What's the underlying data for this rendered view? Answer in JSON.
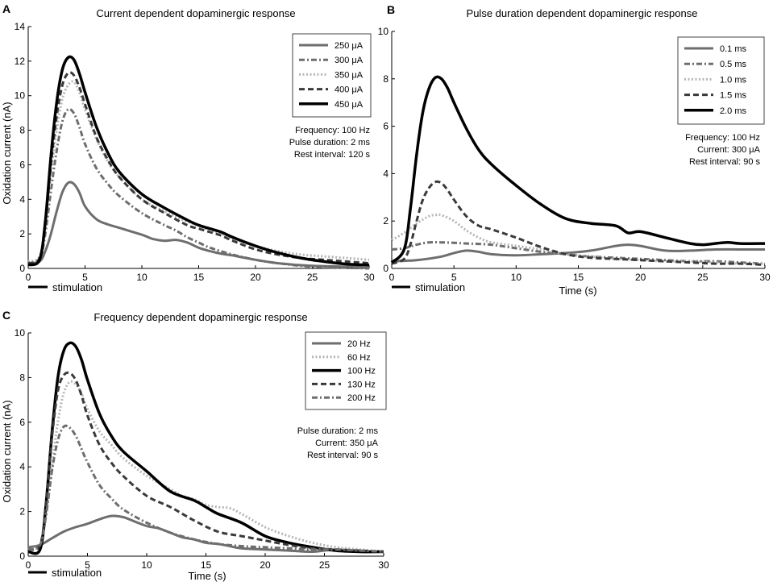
{
  "colors": {
    "dark_gray": "#6e6e6e",
    "mid_gray": "#8a8a8a",
    "light_gray": "#b5b5b5",
    "black": "#000000"
  },
  "chart_data": [
    {
      "panel": "A",
      "type": "line",
      "title": "Current dependent dopaminergic response",
      "xlabel": "",
      "ylabel": "Oxidation current (nA)",
      "xlim": [
        0,
        30
      ],
      "ylim": [
        0,
        14
      ],
      "xticks": [
        0,
        5,
        10,
        15,
        20,
        25,
        30
      ],
      "yticks": [
        0,
        2,
        4,
        6,
        8,
        10,
        12,
        14
      ],
      "stimulation_label": "stimulation",
      "legend_position": "top-right",
      "annotation": [
        "Frequency: 100 Hz",
        "Pulse duration: 2 ms",
        "Rest interval: 120 s"
      ],
      "series": [
        {
          "name": "250 μA",
          "style": "solid",
          "color": "#6e6e6e",
          "width": 3,
          "x": [
            0,
            1,
            1.5,
            2,
            2.5,
            3,
            3.5,
            4,
            4.5,
            5,
            6,
            7,
            8,
            10,
            11,
            12,
            13,
            14,
            15,
            16,
            17,
            18,
            20,
            22,
            25,
            28,
            30
          ],
          "values": [
            0.3,
            0.4,
            1.0,
            2.0,
            3.3,
            4.4,
            4.95,
            4.9,
            4.4,
            3.6,
            2.85,
            2.55,
            2.35,
            1.95,
            1.7,
            1.6,
            1.65,
            1.5,
            1.2,
            1.0,
            0.85,
            0.75,
            0.5,
            0.3,
            0.15,
            0.1,
            0.05
          ]
        },
        {
          "name": "300 μA",
          "style": "dashdot",
          "color": "#6e6e6e",
          "width": 3,
          "x": [
            0,
            1,
            1.5,
            2,
            2.5,
            3,
            3.5,
            4,
            4.5,
            5,
            6,
            7,
            8,
            10,
            12,
            13,
            14,
            15,
            16,
            18,
            20,
            22,
            25,
            30
          ],
          "values": [
            0.2,
            0.5,
            2.0,
            4.5,
            6.8,
            8.5,
            9.2,
            9.0,
            8.2,
            7.2,
            5.8,
            4.9,
            4.2,
            3.2,
            2.5,
            2.2,
            1.8,
            1.5,
            1.2,
            0.8,
            0.5,
            0.3,
            0.1,
            0.0
          ]
        },
        {
          "name": "350 μA",
          "style": "dotted",
          "color": "#b5b5b5",
          "width": 3,
          "x": [
            0,
            1,
            1.5,
            2,
            2.5,
            3,
            3.5,
            4,
            4.5,
            5,
            6,
            7,
            8,
            10,
            12,
            14,
            15,
            16,
            17,
            18,
            20,
            22,
            24,
            26,
            28,
            30
          ],
          "values": [
            0.4,
            0.7,
            2.5,
            5.5,
            8.0,
            9.8,
            10.6,
            10.8,
            10.2,
            9.2,
            7.5,
            6.2,
            5.3,
            4.0,
            3.3,
            2.7,
            2.5,
            2.2,
            2.0,
            1.7,
            1.3,
            1.0,
            0.8,
            0.7,
            0.6,
            0.5
          ]
        },
        {
          "name": "400 μA",
          "style": "dashed",
          "color": "#3a3a3a",
          "width": 3,
          "x": [
            0,
            1,
            1.5,
            2,
            2.5,
            3,
            3.5,
            4,
            4.5,
            5,
            6,
            7,
            8,
            10,
            12,
            14,
            15,
            16,
            17,
            18,
            20,
            22,
            24,
            26,
            28,
            30
          ],
          "values": [
            0.3,
            0.6,
            2.6,
            6.0,
            8.8,
            10.6,
            11.3,
            11.2,
            10.5,
            9.5,
            7.6,
            6.3,
            5.3,
            4.0,
            3.2,
            2.5,
            2.3,
            2.1,
            1.9,
            1.6,
            1.1,
            0.8,
            0.6,
            0.5,
            0.4,
            0.3
          ]
        },
        {
          "name": "450 μA",
          "style": "solid",
          "color": "#000000",
          "width": 3.5,
          "x": [
            0,
            1,
            1.5,
            2,
            2.5,
            3,
            3.5,
            4,
            4.5,
            5,
            6,
            7,
            8,
            10,
            12,
            14,
            15,
            16,
            17,
            18,
            20,
            22,
            24,
            26,
            28,
            30
          ],
          "values": [
            0.2,
            0.5,
            2.7,
            6.5,
            9.6,
            11.5,
            12.2,
            12.1,
            11.3,
            10.2,
            8.2,
            6.7,
            5.6,
            4.3,
            3.5,
            2.8,
            2.5,
            2.3,
            2.1,
            1.8,
            1.3,
            0.9,
            0.6,
            0.4,
            0.25,
            0.2
          ]
        }
      ]
    },
    {
      "panel": "B",
      "type": "line",
      "title": "Pulse duration dependent dopaminergic response",
      "xlabel": "Time (s)",
      "ylabel": "",
      "xlim": [
        0,
        30
      ],
      "ylim": [
        0,
        10
      ],
      "xticks": [
        0,
        5,
        10,
        15,
        20,
        25,
        30
      ],
      "yticks": [
        0,
        2,
        4,
        6,
        8,
        10
      ],
      "stimulation_label": "stimulation",
      "legend_position": "top-right",
      "annotation": [
        "Frequency: 100 Hz",
        "Current: 300 μA",
        "Rest interval: 90 s"
      ],
      "series": [
        {
          "name": "0.1 ms",
          "style": "solid",
          "color": "#6e6e6e",
          "width": 3,
          "x": [
            0,
            2,
            4,
            5,
            6,
            7,
            8,
            10,
            12,
            14,
            16,
            18,
            19,
            20,
            22,
            24,
            26,
            28,
            30
          ],
          "values": [
            0.3,
            0.35,
            0.5,
            0.65,
            0.75,
            0.7,
            0.6,
            0.55,
            0.6,
            0.65,
            0.75,
            0.95,
            1.0,
            0.95,
            0.75,
            0.75,
            0.8,
            0.8,
            0.8
          ]
        },
        {
          "name": "0.5 ms",
          "style": "dashdot",
          "color": "#6e6e6e",
          "width": 3,
          "x": [
            0,
            1,
            2,
            3,
            4,
            5,
            6,
            8,
            10,
            12,
            14,
            16,
            18,
            20,
            22,
            24,
            26,
            28,
            30
          ],
          "values": [
            0.8,
            0.85,
            1.0,
            1.1,
            1.1,
            1.08,
            1.05,
            1.0,
            0.85,
            0.7,
            0.6,
            0.5,
            0.45,
            0.4,
            0.35,
            0.3,
            0.3,
            0.25,
            0.2
          ]
        },
        {
          "name": "1.0 ms",
          "style": "dotted",
          "color": "#b5b5b5",
          "width": 3,
          "x": [
            0,
            1,
            2,
            3,
            3.5,
            4,
            5,
            6,
            7,
            8,
            10,
            12,
            14,
            16,
            18,
            20,
            22,
            24,
            26,
            28,
            30
          ],
          "values": [
            1.2,
            1.5,
            1.9,
            2.2,
            2.25,
            2.25,
            2.0,
            1.6,
            1.3,
            1.1,
            0.95,
            0.8,
            0.6,
            0.5,
            0.4,
            0.35,
            0.3,
            0.3,
            0.25,
            0.2,
            0.2
          ]
        },
        {
          "name": "1.5 ms",
          "style": "dashed",
          "color": "#3a3a3a",
          "width": 3,
          "x": [
            0,
            1,
            1.5,
            2,
            2.5,
            3,
            3.5,
            4,
            4.5,
            5,
            6,
            7,
            8,
            10,
            12,
            14,
            16,
            18,
            20,
            22,
            24,
            26,
            28,
            30
          ],
          "values": [
            0.2,
            0.4,
            1.0,
            2.0,
            2.9,
            3.4,
            3.65,
            3.6,
            3.3,
            2.9,
            2.2,
            1.8,
            1.65,
            1.3,
            0.9,
            0.6,
            0.45,
            0.4,
            0.35,
            0.3,
            0.25,
            0.2,
            0.2,
            0.15
          ]
        },
        {
          "name": "2.0 ms",
          "style": "solid",
          "color": "#000000",
          "width": 3.5,
          "x": [
            0,
            1,
            1.5,
            2,
            2.5,
            3,
            3.5,
            4,
            4.5,
            5,
            6,
            7,
            8,
            10,
            12,
            14,
            16,
            18,
            19,
            20,
            22,
            24,
            25,
            26,
            27,
            28,
            30
          ],
          "values": [
            0.25,
            0.8,
            2.5,
            4.8,
            6.6,
            7.6,
            8.05,
            8.0,
            7.6,
            7.0,
            5.9,
            5.0,
            4.4,
            3.5,
            2.7,
            2.1,
            1.9,
            1.8,
            1.5,
            1.55,
            1.3,
            1.05,
            1.0,
            1.05,
            1.1,
            1.05,
            1.05
          ]
        }
      ]
    },
    {
      "panel": "C",
      "type": "line",
      "title": "Frequency dependent dopaminergic response",
      "xlabel": "Time (s)",
      "ylabel": "Oxidation current (nA)",
      "xlim": [
        0,
        30
      ],
      "ylim": [
        0,
        10
      ],
      "xticks": [
        0,
        5,
        10,
        15,
        20,
        25,
        30
      ],
      "yticks": [
        0,
        2,
        4,
        6,
        8,
        10
      ],
      "stimulation_label": "stimulation",
      "legend_position": "top-right",
      "annotation": [
        "Pulse duration: 2 ms",
        "Current: 350 μA",
        "Rest interval: 90 s"
      ],
      "series": [
        {
          "name": "20 Hz",
          "style": "solid",
          "color": "#6e6e6e",
          "width": 3,
          "x": [
            0,
            1,
            2,
            3,
            4,
            5,
            6,
            7,
            8,
            9,
            10,
            11,
            12,
            13,
            14,
            15,
            16,
            17,
            18,
            20,
            22,
            24,
            26,
            28,
            30
          ],
          "values": [
            0.4,
            0.5,
            0.8,
            1.1,
            1.3,
            1.45,
            1.65,
            1.8,
            1.75,
            1.55,
            1.35,
            1.25,
            1.05,
            0.85,
            0.75,
            0.6,
            0.55,
            0.45,
            0.35,
            0.3,
            0.25,
            0.2,
            0.3,
            0.2,
            0.2
          ]
        },
        {
          "name": "60 Hz",
          "style": "dotted",
          "color": "#b5b5b5",
          "width": 3,
          "x": [
            0,
            1,
            1.5,
            2,
            2.5,
            3,
            3.5,
            4,
            4.5,
            5,
            6,
            7,
            8,
            10,
            12,
            13,
            14,
            15,
            16,
            17,
            18,
            20,
            22,
            24,
            26,
            28,
            30
          ],
          "values": [
            0.3,
            0.5,
            1.8,
            4.0,
            6.0,
            7.3,
            7.8,
            7.7,
            7.3,
            6.6,
            5.6,
            5.0,
            4.4,
            3.6,
            3.0,
            2.7,
            2.55,
            2.3,
            2.2,
            2.15,
            1.9,
            1.3,
            0.9,
            0.6,
            0.4,
            0.3,
            0.2
          ]
        },
        {
          "name": "100 Hz",
          "style": "solid",
          "color": "#000000",
          "width": 3.5,
          "x": [
            0,
            1,
            1.5,
            2,
            2.5,
            3,
            3.5,
            4,
            4.5,
            5,
            6,
            7,
            8,
            10,
            12,
            14,
            15,
            16,
            18,
            20,
            22,
            24,
            26,
            28,
            30
          ],
          "values": [
            0.2,
            0.3,
            2.3,
            5.5,
            8.0,
            9.2,
            9.55,
            9.4,
            8.8,
            7.9,
            6.4,
            5.4,
            4.7,
            3.8,
            2.9,
            2.5,
            2.2,
            1.9,
            1.5,
            0.9,
            0.6,
            0.4,
            0.25,
            0.2,
            0.2
          ]
        },
        {
          "name": "130 Hz",
          "style": "dashed",
          "color": "#3a3a3a",
          "width": 3,
          "x": [
            0,
            1,
            1.5,
            2,
            2.5,
            3,
            3.5,
            4,
            4.5,
            5,
            6,
            7,
            8,
            10,
            12,
            14,
            16,
            18,
            20,
            22,
            24,
            26,
            28,
            30
          ],
          "values": [
            0.3,
            0.5,
            2.3,
            5.3,
            7.4,
            8.1,
            8.2,
            7.9,
            7.2,
            6.3,
            5.0,
            4.2,
            3.6,
            2.7,
            2.2,
            1.6,
            1.1,
            0.9,
            0.7,
            0.5,
            0.35,
            0.3,
            0.25,
            0.2
          ]
        },
        {
          "name": "200 Hz",
          "style": "dashdot",
          "color": "#6e6e6e",
          "width": 3,
          "x": [
            0,
            1,
            1.5,
            2,
            2.5,
            3,
            3.5,
            4,
            4.5,
            5,
            6,
            7,
            8,
            10,
            12,
            14,
            16,
            18,
            20,
            22,
            24,
            26,
            28,
            30
          ],
          "values": [
            0.3,
            0.5,
            1.8,
            3.8,
            5.2,
            5.8,
            5.75,
            5.4,
            4.8,
            4.2,
            3.2,
            2.6,
            2.1,
            1.5,
            1.05,
            0.75,
            0.55,
            0.45,
            0.4,
            0.35,
            0.3,
            0.3,
            0.25,
            0.2
          ]
        }
      ]
    }
  ]
}
